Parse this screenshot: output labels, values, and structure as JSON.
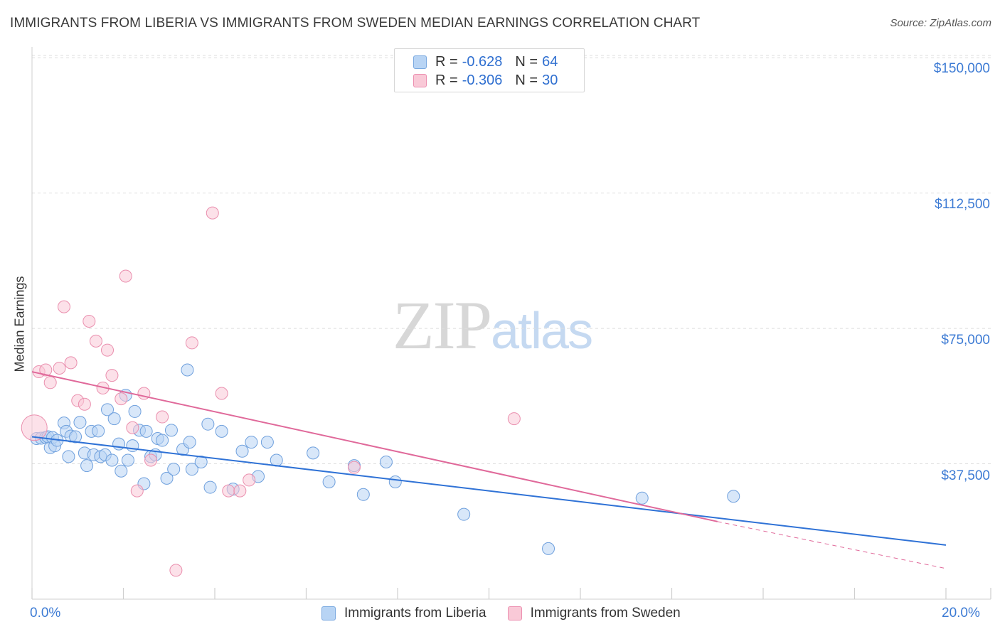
{
  "header": {
    "title": "IMMIGRANTS FROM LIBERIA VS IMMIGRANTS FROM SWEDEN MEDIAN EARNINGS CORRELATION CHART",
    "source": "Source: ZipAtlas.com"
  },
  "watermark": {
    "zip": "ZIP",
    "atlas": "atlas"
  },
  "legend": {
    "r_label": "R =",
    "n_label": "N =",
    "rows": [
      {
        "r": "-0.628",
        "n": "64"
      },
      {
        "r": "-0.306",
        "n": "30"
      }
    ]
  },
  "colors": {
    "blue_fill": "#b8d4f4",
    "blue_stroke": "#6fa0dd",
    "blue_line": "#2f72d6",
    "pink_fill": "#f9c9d7",
    "pink_stroke": "#ea8fae",
    "pink_line": "#e0699a",
    "tick_label": "#3d7bd4",
    "grid": "#dddddd"
  },
  "chart_data": {
    "type": "scatter",
    "title": "IMMIGRANTS FROM LIBERIA VS IMMIGRANTS FROM SWEDEN MEDIAN EARNINGS CORRELATION CHART",
    "xlabel": "",
    "ylabel": "Median Earnings",
    "xlim": [
      0,
      20
    ],
    "ylim": [
      0,
      153000
    ],
    "x_tick_labels": [
      "0.0%",
      "20.0%"
    ],
    "y_ticks": [
      {
        "value": 37500,
        "label": "$37,500"
      },
      {
        "value": 75000,
        "label": "$75,000"
      },
      {
        "value": 112500,
        "label": "$112,500"
      },
      {
        "value": 150000,
        "label": "$150,000"
      }
    ],
    "grid": true,
    "legend_position": "bottom-center",
    "series": [
      {
        "name": "Immigrants from Liberia",
        "color": "blue",
        "trend": {
          "x": [
            0.0,
            20.0
          ],
          "y": [
            45000,
            15000
          ]
        },
        "points": [
          {
            "x": 0.1,
            "y": 44500
          },
          {
            "x": 0.2,
            "y": 44600
          },
          {
            "x": 0.3,
            "y": 44800
          },
          {
            "x": 0.35,
            "y": 45000
          },
          {
            "x": 0.4,
            "y": 42000
          },
          {
            "x": 0.45,
            "y": 44800
          },
          {
            "x": 0.5,
            "y": 42500
          },
          {
            "x": 0.55,
            "y": 44000
          },
          {
            "x": 0.7,
            "y": 48800
          },
          {
            "x": 0.75,
            "y": 46500
          },
          {
            "x": 0.8,
            "y": 39500
          },
          {
            "x": 0.85,
            "y": 45200
          },
          {
            "x": 0.95,
            "y": 45000
          },
          {
            "x": 1.05,
            "y": 49000
          },
          {
            "x": 1.15,
            "y": 40500
          },
          {
            "x": 1.2,
            "y": 37000
          },
          {
            "x": 1.3,
            "y": 46500
          },
          {
            "x": 1.35,
            "y": 40000
          },
          {
            "x": 1.45,
            "y": 46600
          },
          {
            "x": 1.5,
            "y": 39500
          },
          {
            "x": 1.6,
            "y": 40000
          },
          {
            "x": 1.65,
            "y": 52500
          },
          {
            "x": 1.75,
            "y": 38500
          },
          {
            "x": 1.8,
            "y": 50000
          },
          {
            "x": 1.9,
            "y": 43000
          },
          {
            "x": 1.95,
            "y": 35500
          },
          {
            "x": 2.05,
            "y": 56500
          },
          {
            "x": 2.1,
            "y": 38500
          },
          {
            "x": 2.2,
            "y": 42500
          },
          {
            "x": 2.25,
            "y": 52000
          },
          {
            "x": 2.35,
            "y": 46800
          },
          {
            "x": 2.45,
            "y": 32000
          },
          {
            "x": 2.5,
            "y": 46500
          },
          {
            "x": 2.6,
            "y": 39500
          },
          {
            "x": 2.7,
            "y": 40000
          },
          {
            "x": 2.75,
            "y": 44500
          },
          {
            "x": 2.85,
            "y": 44000
          },
          {
            "x": 2.95,
            "y": 33500
          },
          {
            "x": 3.05,
            "y": 46800
          },
          {
            "x": 3.1,
            "y": 36000
          },
          {
            "x": 3.3,
            "y": 41500
          },
          {
            "x": 3.4,
            "y": 63500
          },
          {
            "x": 3.45,
            "y": 43500
          },
          {
            "x": 3.5,
            "y": 36000
          },
          {
            "x": 3.7,
            "y": 38000
          },
          {
            "x": 3.85,
            "y": 48500
          },
          {
            "x": 3.9,
            "y": 31000
          },
          {
            "x": 4.15,
            "y": 46500
          },
          {
            "x": 4.4,
            "y": 30500
          },
          {
            "x": 4.6,
            "y": 41000
          },
          {
            "x": 4.8,
            "y": 43500
          },
          {
            "x": 4.95,
            "y": 34000
          },
          {
            "x": 5.15,
            "y": 43500
          },
          {
            "x": 5.35,
            "y": 38500
          },
          {
            "x": 6.15,
            "y": 40500
          },
          {
            "x": 6.5,
            "y": 32500
          },
          {
            "x": 7.05,
            "y": 37000
          },
          {
            "x": 7.25,
            "y": 29000
          },
          {
            "x": 7.75,
            "y": 38000
          },
          {
            "x": 7.95,
            "y": 32500
          },
          {
            "x": 9.45,
            "y": 23500
          },
          {
            "x": 11.3,
            "y": 14000
          },
          {
            "x": 13.35,
            "y": 28000
          },
          {
            "x": 15.35,
            "y": 28500
          }
        ]
      },
      {
        "name": "Immigrants from Sweden",
        "color": "pink",
        "trend": {
          "x": [
            0.0,
            15.0
          ],
          "y": [
            63000,
            21500
          ]
        },
        "trend_dashed": {
          "x": [
            15.0,
            20.0
          ],
          "y": [
            21500,
            8500
          ]
        },
        "points": [
          {
            "x": 0.05,
            "y": 47500,
            "big": true
          },
          {
            "x": 0.15,
            "y": 63000
          },
          {
            "x": 0.3,
            "y": 63500
          },
          {
            "x": 0.4,
            "y": 60000
          },
          {
            "x": 0.6,
            "y": 64000
          },
          {
            "x": 0.7,
            "y": 81000
          },
          {
            "x": 0.85,
            "y": 65500
          },
          {
            "x": 1.0,
            "y": 55000
          },
          {
            "x": 1.15,
            "y": 54000
          },
          {
            "x": 1.25,
            "y": 77000
          },
          {
            "x": 1.4,
            "y": 71500
          },
          {
            "x": 1.55,
            "y": 58500
          },
          {
            "x": 1.65,
            "y": 69000
          },
          {
            "x": 1.75,
            "y": 62000
          },
          {
            "x": 1.95,
            "y": 55500
          },
          {
            "x": 2.05,
            "y": 89500
          },
          {
            "x": 2.2,
            "y": 47500
          },
          {
            "x": 2.3,
            "y": 30000
          },
          {
            "x": 2.45,
            "y": 57000
          },
          {
            "x": 2.6,
            "y": 38500
          },
          {
            "x": 2.85,
            "y": 50500
          },
          {
            "x": 3.15,
            "y": 8000
          },
          {
            "x": 3.5,
            "y": 71000
          },
          {
            "x": 3.95,
            "y": 107000
          },
          {
            "x": 4.15,
            "y": 57000
          },
          {
            "x": 4.3,
            "y": 30000
          },
          {
            "x": 4.55,
            "y": 30000
          },
          {
            "x": 4.75,
            "y": 33000
          },
          {
            "x": 7.05,
            "y": 36500
          },
          {
            "x": 10.55,
            "y": 50000
          }
        ]
      }
    ]
  }
}
